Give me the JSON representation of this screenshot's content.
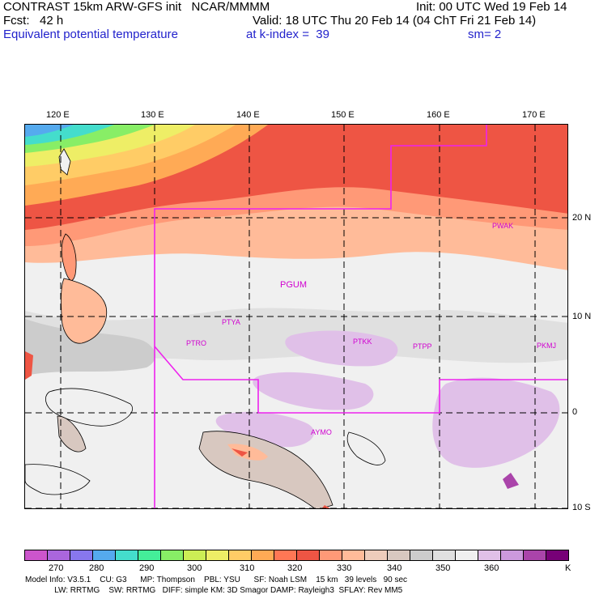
{
  "header": {
    "line1_left": "CONTRAST 15km ARW-GFS init   NCAR/MMMM",
    "line1_right": "Init: 00 UTC Wed 19 Feb 14",
    "line2_left": "Fcst:   42 h",
    "line2_right": "Valid: 18 UTC Thu 20 Feb 14 (04 ChT Fri 21 Feb 14)",
    "line3_left": "Equivalent potential temperature",
    "line3_mid": "at k-index =  39",
    "line3_right": "sm= 2"
  },
  "axes": {
    "lon_labels": [
      "120 E",
      "130 E",
      "140 E",
      "150 E",
      "160 E",
      "170 E"
    ],
    "lat_labels": [
      "20 N",
      "10 N",
      "0",
      "10 S"
    ]
  },
  "stations": [
    "PWAK",
    "PGUM",
    "PTYA",
    "PTRO",
    "PTKK",
    "PTPP",
    "PKMJ",
    "AYMO"
  ],
  "colorbar": {
    "ticks": [
      "270",
      "280",
      "290",
      "300",
      "310",
      "320",
      "330",
      "340",
      "350",
      "360"
    ],
    "unit": "K",
    "colors": [
      "#cc55cc",
      "#aa66dd",
      "#8877ee",
      "#55aaee",
      "#44ddcc",
      "#44ee99",
      "#88ee66",
      "#ccee55",
      "#eeee66",
      "#ffcc66",
      "#ffaa55",
      "#ff7755",
      "#ee5544",
      "#ff9977",
      "#ffbb99",
      "#eeccbb",
      "#d8c8c0",
      "#cccccc",
      "#e0e0e0",
      "#f0f0f0",
      "#e0c0e8",
      "#cc99dd",
      "#aa44aa",
      "#770077"
    ]
  },
  "footer": {
    "line1": "Model Info: V3.5.1    CU: G3      MP: Thompson    PBL: YSU      SF: Noah LSM    15 km   39 levels   90 sec",
    "line2": "             LW: RRTMG    SW: RRTMG   DIFF: simple KM: 3D Smagor DAMP: Rayleigh3  SFLAY: Rev MM5"
  }
}
